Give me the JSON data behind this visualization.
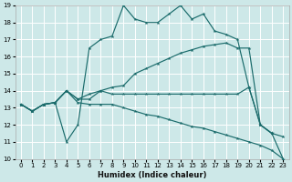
{
  "xlabel": "Humidex (Indice chaleur)",
  "bg_color": "#cde8e8",
  "line_color": "#1a6b6b",
  "grid_color": "#ffffff",
  "xlim": [
    -0.5,
    23.5
  ],
  "ylim": [
    10,
    19
  ],
  "xticks": [
    0,
    1,
    2,
    3,
    4,
    5,
    6,
    7,
    8,
    9,
    10,
    11,
    12,
    13,
    14,
    15,
    16,
    17,
    18,
    19,
    20,
    21,
    22,
    23
  ],
  "yticks": [
    10,
    11,
    12,
    13,
    14,
    15,
    16,
    17,
    18,
    19
  ],
  "series": [
    {
      "x": [
        0,
        1,
        2,
        3,
        4,
        5,
        6,
        7,
        8,
        9,
        10,
        11,
        12,
        13,
        14,
        15,
        16,
        17,
        18,
        19,
        20,
        21,
        22
      ],
      "y": [
        13.2,
        12.8,
        13.2,
        13.3,
        11.0,
        12.0,
        16.5,
        17.0,
        17.2,
        19.0,
        18.2,
        18.0,
        18.0,
        18.5,
        19.0,
        18.2,
        18.5,
        17.5,
        17.3,
        17.0,
        14.2,
        12.0,
        11.5
      ]
    },
    {
      "x": [
        0,
        1,
        2,
        3,
        4,
        5,
        6,
        7,
        8,
        9,
        10,
        11,
        12,
        13,
        14,
        15,
        16,
        17,
        18,
        19,
        20,
        21,
        22,
        23
      ],
      "y": [
        13.2,
        12.8,
        13.2,
        13.3,
        14.0,
        13.5,
        13.8,
        14.0,
        14.2,
        14.3,
        15.0,
        15.3,
        15.6,
        15.9,
        16.2,
        16.4,
        16.6,
        16.7,
        16.8,
        16.5,
        16.5,
        12.0,
        11.5,
        11.3
      ]
    },
    {
      "x": [
        0,
        1,
        2,
        3,
        4,
        5,
        6,
        7,
        8,
        9,
        10,
        11,
        12,
        13,
        14,
        15,
        16,
        17,
        18,
        19,
        20,
        21,
        22,
        23
      ],
      "y": [
        13.2,
        12.8,
        13.2,
        13.3,
        14.0,
        13.5,
        13.5,
        14.0,
        13.8,
        13.8,
        13.8,
        13.8,
        13.8,
        13.8,
        13.8,
        13.8,
        13.8,
        13.8,
        13.8,
        13.8,
        14.2,
        12.0,
        11.5,
        10.0
      ]
    },
    {
      "x": [
        0,
        1,
        2,
        3,
        4,
        5,
        6,
        7,
        8,
        9,
        10,
        11,
        12,
        13,
        14,
        15,
        16,
        17,
        18,
        19,
        20,
        21,
        22,
        23
      ],
      "y": [
        13.2,
        12.8,
        13.2,
        13.3,
        14.0,
        13.3,
        13.2,
        13.2,
        13.2,
        13.0,
        12.8,
        12.6,
        12.5,
        12.3,
        12.1,
        11.9,
        11.8,
        11.6,
        11.4,
        11.2,
        11.0,
        10.8,
        10.5,
        10.0
      ]
    }
  ]
}
